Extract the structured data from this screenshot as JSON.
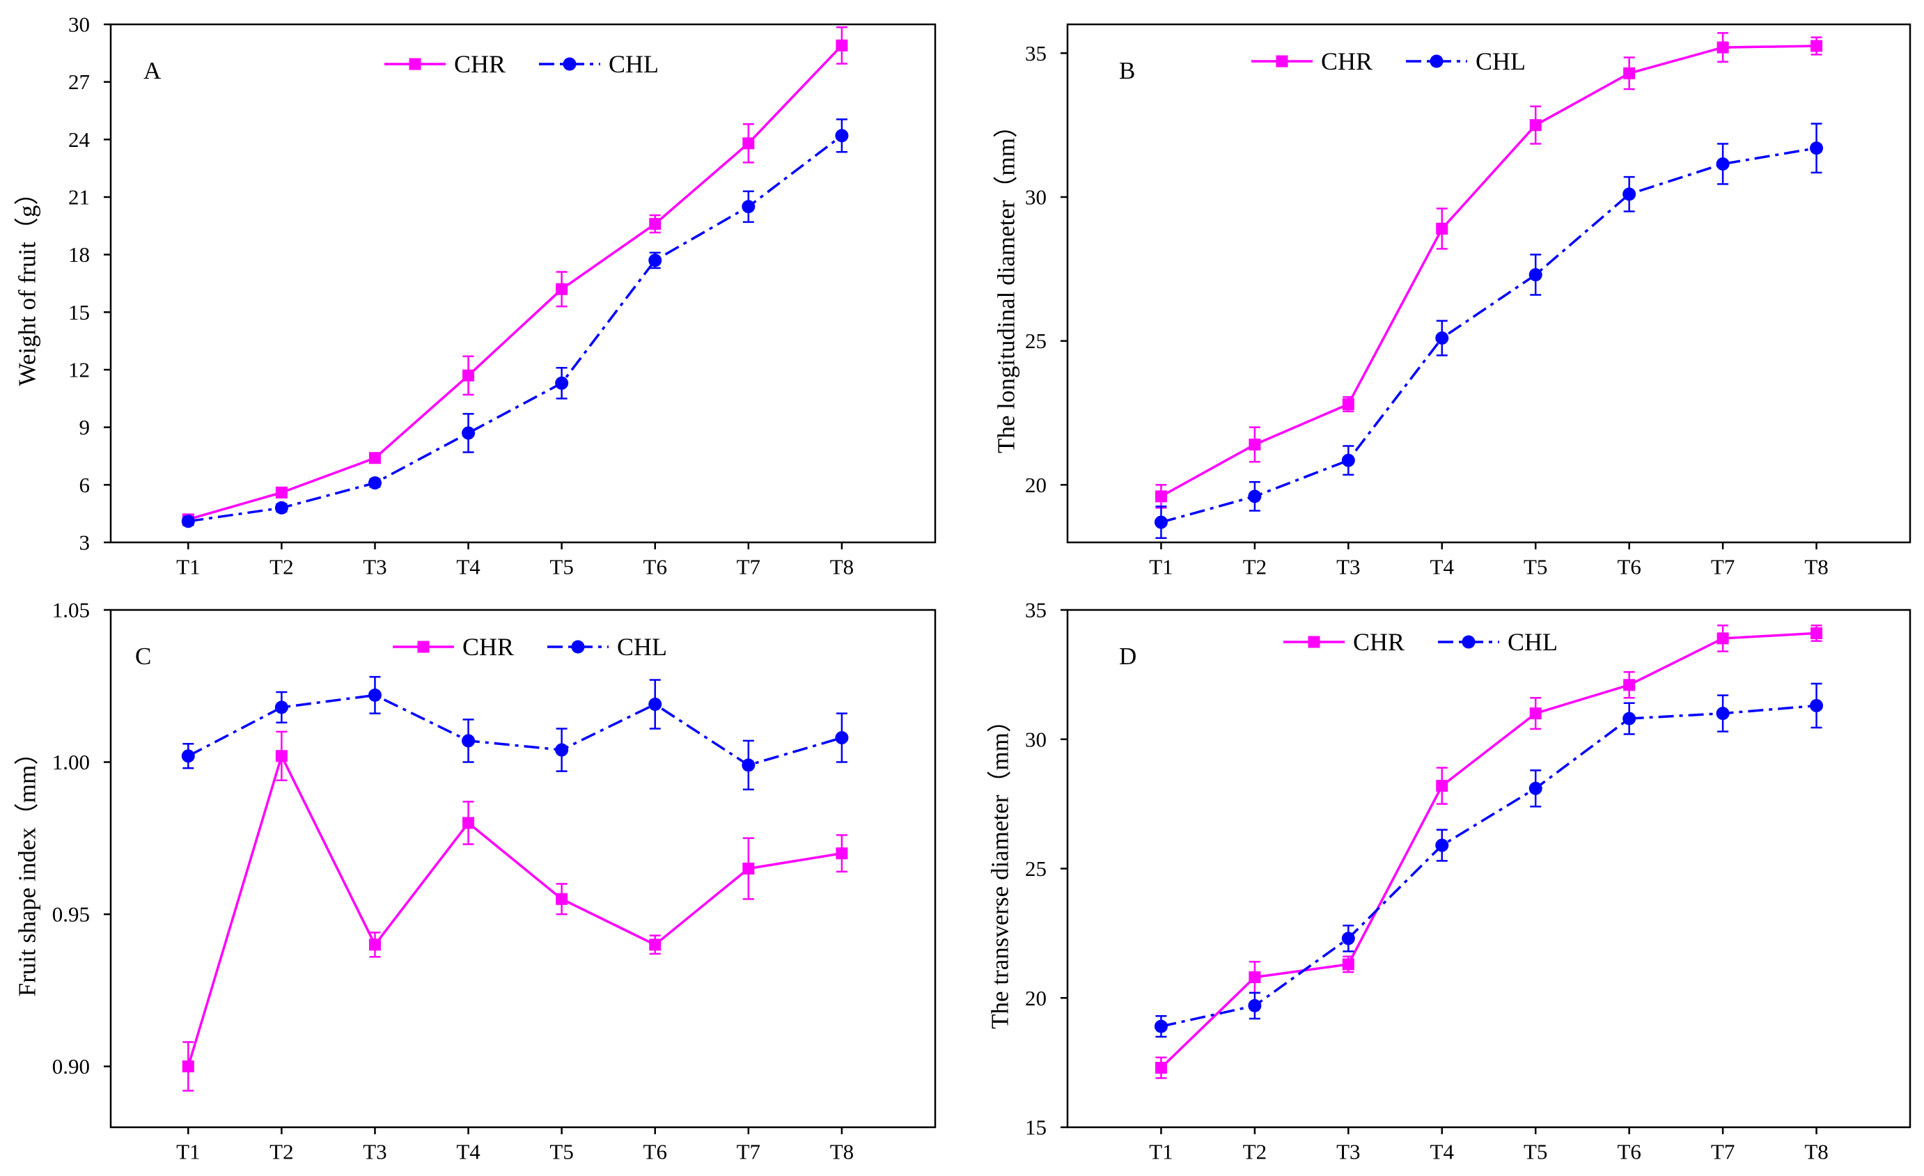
{
  "colors": {
    "CHR": "#ff00ff",
    "CHL": "#0000ff",
    "axes": "#000000",
    "background": "#ffffff"
  },
  "chart_data": [
    {
      "label": "A",
      "type": "line",
      "categories": [
        "T1",
        "T2",
        "T3",
        "T4",
        "T5",
        "T6",
        "T7",
        "T8"
      ],
      "xlabel": "",
      "ylabel": "Weight of fruit（g）",
      "ylim": [
        3,
        30
      ],
      "yticks": [
        3,
        6,
        9,
        12,
        15,
        18,
        21,
        24,
        27,
        30
      ],
      "ytick_labels": [
        "3",
        "6",
        "9",
        "12",
        "15",
        "18",
        "21",
        "24",
        "27",
        "30"
      ],
      "series": [
        {
          "name": "CHR",
          "marker": "square",
          "values": [
            4.2,
            5.6,
            7.4,
            11.7,
            16.2,
            19.6,
            23.8,
            28.9
          ],
          "errors": [
            0.2,
            0.2,
            0.2,
            1.0,
            0.9,
            0.45,
            1.0,
            0.95
          ]
        },
        {
          "name": "CHL",
          "marker": "circle",
          "values": [
            4.1,
            4.8,
            6.1,
            8.7,
            11.3,
            17.7,
            20.5,
            24.2
          ],
          "errors": [
            0.2,
            0.2,
            0.2,
            1.0,
            0.8,
            0.4,
            0.8,
            0.85
          ]
        }
      ]
    },
    {
      "label": "B",
      "type": "line",
      "categories": [
        "T1",
        "T2",
        "T3",
        "T4",
        "T5",
        "T6",
        "T7",
        "T8"
      ],
      "xlabel": "",
      "ylabel": "The longitudinal diameter（mm）",
      "ylim": [
        18,
        36
      ],
      "yticks": [
        20,
        25,
        30,
        35
      ],
      "ytick_labels": [
        "20",
        "25",
        "30",
        "35"
      ],
      "series": [
        {
          "name": "CHR",
          "marker": "square",
          "values": [
            19.6,
            21.4,
            22.8,
            28.9,
            32.5,
            34.3,
            35.2,
            35.25
          ],
          "errors": [
            0.4,
            0.6,
            0.25,
            0.7,
            0.65,
            0.55,
            0.5,
            0.3
          ]
        },
        {
          "name": "CHL",
          "marker": "circle",
          "values": [
            18.7,
            19.6,
            20.85,
            25.1,
            27.3,
            30.1,
            31.15,
            31.7
          ],
          "errors": [
            0.55,
            0.5,
            0.5,
            0.6,
            0.7,
            0.6,
            0.7,
            0.85
          ]
        }
      ]
    },
    {
      "label": "C",
      "type": "line",
      "categories": [
        "T1",
        "T2",
        "T3",
        "T4",
        "T5",
        "T6",
        "T7",
        "T8"
      ],
      "xlabel": "",
      "ylabel": "Fruit shape index（mm）",
      "ylim": [
        0.88,
        1.05
      ],
      "yticks": [
        0.9,
        0.95,
        1.0,
        1.05
      ],
      "ytick_labels": [
        "0.90",
        "0.95",
        "1.00",
        "1.05"
      ],
      "series": [
        {
          "name": "CHR",
          "marker": "square",
          "values": [
            0.9,
            1.002,
            0.94,
            0.98,
            0.955,
            0.94,
            0.965,
            0.97
          ],
          "errors": [
            0.008,
            0.008,
            0.004,
            0.007,
            0.005,
            0.003,
            0.01,
            0.006
          ]
        },
        {
          "name": "CHL",
          "marker": "circle",
          "values": [
            1.002,
            1.018,
            1.022,
            1.007,
            1.004,
            1.019,
            0.999,
            1.008
          ],
          "errors": [
            0.004,
            0.005,
            0.006,
            0.007,
            0.007,
            0.008,
            0.008,
            0.008
          ]
        }
      ]
    },
    {
      "label": "D",
      "type": "line",
      "categories": [
        "T1",
        "T2",
        "T3",
        "T4",
        "T5",
        "T6",
        "T7",
        "T8"
      ],
      "xlabel": "",
      "ylabel": "The transverse diameter（mm）",
      "ylim": [
        15,
        35
      ],
      "yticks": [
        15,
        20,
        25,
        30,
        35
      ],
      "ytick_labels": [
        "15",
        "20",
        "25",
        "30",
        "35"
      ],
      "series": [
        {
          "name": "CHR",
          "marker": "square",
          "values": [
            17.3,
            20.8,
            21.3,
            28.2,
            31.0,
            32.1,
            33.9,
            34.1
          ],
          "errors": [
            0.4,
            0.6,
            0.3,
            0.7,
            0.6,
            0.5,
            0.5,
            0.3
          ]
        },
        {
          "name": "CHL",
          "marker": "circle",
          "values": [
            18.9,
            19.7,
            22.3,
            25.9,
            28.1,
            30.8,
            31.0,
            31.3
          ],
          "errors": [
            0.4,
            0.5,
            0.5,
            0.6,
            0.7,
            0.6,
            0.7,
            0.85
          ]
        }
      ]
    }
  ]
}
